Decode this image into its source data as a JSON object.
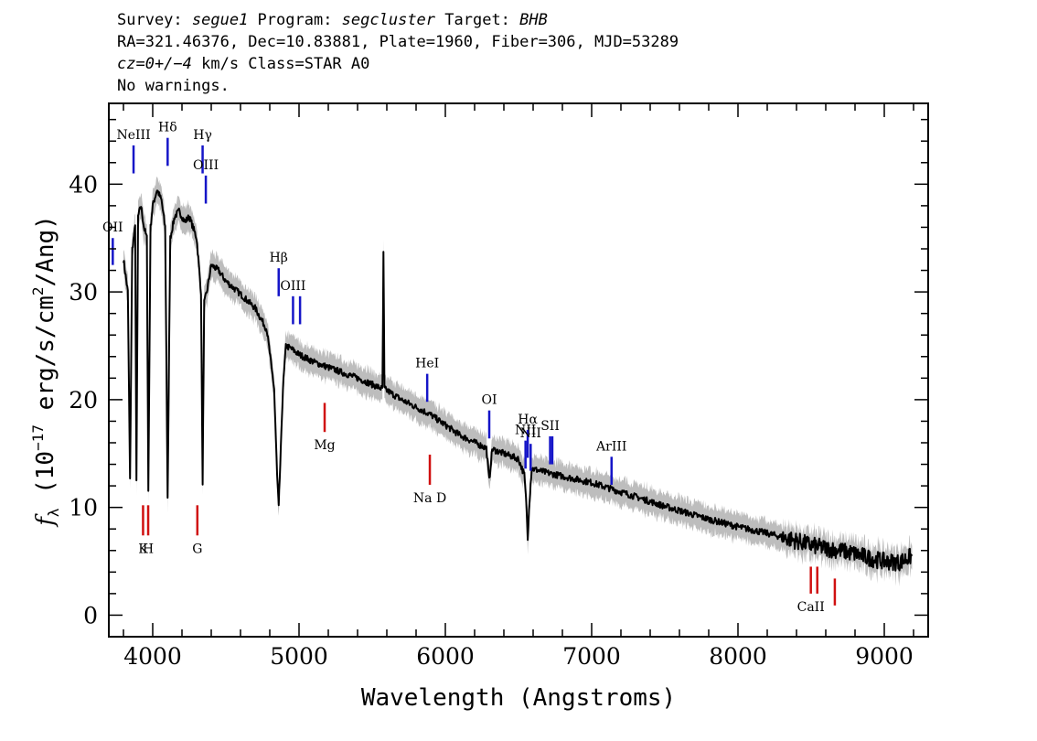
{
  "header": {
    "line1": {
      "survey_label": "Survey: ",
      "survey": "segue1",
      "program_label": " Program: ",
      "program": "segcluster",
      "target_label": " Target: ",
      "target": "BHB"
    },
    "line2": "RA=321.46376, Dec=10.83881, Plate=1960, Fiber=306, MJD=53289",
    "line3": {
      "cz": "cz=0+/−4",
      "rest": " km/s Class=STAR A0"
    },
    "line4": "No warnings."
  },
  "chart_data": {
    "type": "line",
    "title": "",
    "xlabel": "Wavelength (Angstroms)",
    "ylabel": "fλ (10⁻¹⁷ erg/s/cm²/Ang)",
    "xlim": [
      3700,
      9300
    ],
    "ylim": [
      -2,
      47.5
    ],
    "xticks": [
      4000,
      5000,
      6000,
      7000,
      8000,
      9000
    ],
    "yticks": [
      0,
      10,
      20,
      30,
      40
    ],
    "grid": false,
    "colors": {
      "spectrum": "#000000",
      "error": "#bdbdbd",
      "emission": "#1515c8",
      "absorption": "#d01010"
    },
    "spectrum_anchors": [
      [
        3800,
        33
      ],
      [
        3830,
        30
      ],
      [
        3845,
        12.5
      ],
      [
        3860,
        34
      ],
      [
        3880,
        36
      ],
      [
        3889,
        12.5
      ],
      [
        3900,
        37
      ],
      [
        3920,
        38
      ],
      [
        3940,
        36
      ],
      [
        3960,
        35
      ],
      [
        3970,
        11.5
      ],
      [
        3985,
        36
      ],
      [
        4000,
        38
      ],
      [
        4030,
        39.5
      ],
      [
        4060,
        38.5
      ],
      [
        4085,
        36
      ],
      [
        4102,
        11
      ],
      [
        4120,
        35
      ],
      [
        4150,
        37
      ],
      [
        4180,
        37.5
      ],
      [
        4220,
        36.5
      ],
      [
        4250,
        37
      ],
      [
        4300,
        35
      ],
      [
        4330,
        30
      ],
      [
        4341,
        12
      ],
      [
        4352,
        29
      ],
      [
        4370,
        30
      ],
      [
        4400,
        32.5
      ],
      [
        4450,
        32
      ],
      [
        4500,
        31
      ],
      [
        4600,
        29.8
      ],
      [
        4700,
        28.5
      ],
      [
        4780,
        26.5
      ],
      [
        4830,
        21
      ],
      [
        4850,
        13
      ],
      [
        4861,
        10
      ],
      [
        4872,
        14
      ],
      [
        4890,
        21
      ],
      [
        4910,
        25
      ],
      [
        4950,
        24.7
      ],
      [
        5000,
        24.2
      ],
      [
        5100,
        23.5
      ],
      [
        5200,
        23
      ],
      [
        5400,
        22
      ],
      [
        5570,
        21
      ],
      [
        5577,
        33.5
      ],
      [
        5584,
        21
      ],
      [
        5700,
        20
      ],
      [
        5900,
        18.6
      ],
      [
        6100,
        16.7
      ],
      [
        6280,
        15.5
      ],
      [
        6300,
        12.5
      ],
      [
        6320,
        15.4
      ],
      [
        6500,
        14.5
      ],
      [
        6540,
        13
      ],
      [
        6555,
        10
      ],
      [
        6563,
        7
      ],
      [
        6572,
        10
      ],
      [
        6590,
        13.6
      ],
      [
        6700,
        13.2
      ],
      [
        7000,
        12.3
      ],
      [
        7300,
        11
      ],
      [
        7500,
        10.1
      ],
      [
        7800,
        8.9
      ],
      [
        8000,
        8.2
      ],
      [
        8200,
        7.6
      ],
      [
        8400,
        6.9
      ],
      [
        8500,
        6.5
      ],
      [
        8600,
        6.2
      ],
      [
        8700,
        6
      ],
      [
        8800,
        5.7
      ],
      [
        8900,
        5.3
      ],
      [
        9000,
        5
      ],
      [
        9100,
        4.9
      ],
      [
        9190,
        5.5
      ]
    ],
    "emission_lines": [
      {
        "label": "NeIII",
        "wave": 3869,
        "y0": 41,
        "y1": 43.6
      },
      {
        "label": "Hδ",
        "wave": 4102,
        "y0": 41.7,
        "y1": 44.3
      },
      {
        "label": "Hγ",
        "wave": 4341,
        "y0": 41,
        "y1": 43.6
      },
      {
        "label": "OIII",
        "wave": 4363,
        "y0": 38.2,
        "y1": 40.8
      },
      {
        "label": "OII",
        "wave": 3727,
        "y0": 32.5,
        "y1": 35
      },
      {
        "label": "Hβ",
        "wave": 4861,
        "y0": 29.6,
        "y1": 32.2
      },
      {
        "label": "OIII",
        "wave": 4959,
        "y0": 27,
        "y1": 29.6
      },
      {
        "label": "",
        "wave": 5007,
        "y0": 27,
        "y1": 29.6
      },
      {
        "label": "HeI",
        "wave": 5876,
        "y0": 19.8,
        "y1": 22.4
      },
      {
        "label": "OI",
        "wave": 6300,
        "y0": 16.4,
        "y1": 19
      },
      {
        "label": "NII",
        "wave": 6548,
        "y0": 13.6,
        "y1": 16.2
      },
      {
        "label": "Hα",
        "wave": 6563,
        "y0": 14.6,
        "y1": 17.2
      },
      {
        "label": "NII",
        "wave": 6583,
        "y0": 13.4,
        "y1": 15.9
      },
      {
        "label": "SII",
        "wave": 6716,
        "y0": 14,
        "y1": 16.6
      },
      {
        "label": "",
        "wave": 6731,
        "y0": 14,
        "y1": 16.6
      },
      {
        "label": "ArIII",
        "wave": 7136,
        "y0": 12.1,
        "y1": 14.7
      }
    ],
    "absorption_lines": [
      {
        "label": "K",
        "wave": 3934,
        "y0": 7.4,
        "y1": 10.2
      },
      {
        "label": "H",
        "wave": 3969,
        "y0": 7.4,
        "y1": 10.2
      },
      {
        "label": "G",
        "wave": 4305,
        "y0": 7.4,
        "y1": 10.2
      },
      {
        "label": "Mg",
        "wave": 5175,
        "y0": 17,
        "y1": 19.7
      },
      {
        "label": "Na D",
        "wave": 5894,
        "y0": 12.1,
        "y1": 14.9
      },
      {
        "label": "CaII",
        "wave": 8498,
        "y0": 2,
        "y1": 4.5
      },
      {
        "label": "",
        "wave": 8542,
        "y0": 2,
        "y1": 4.5
      },
      {
        "label": "",
        "wave": 8662,
        "y0": 0.9,
        "y1": 3.4
      }
    ]
  }
}
